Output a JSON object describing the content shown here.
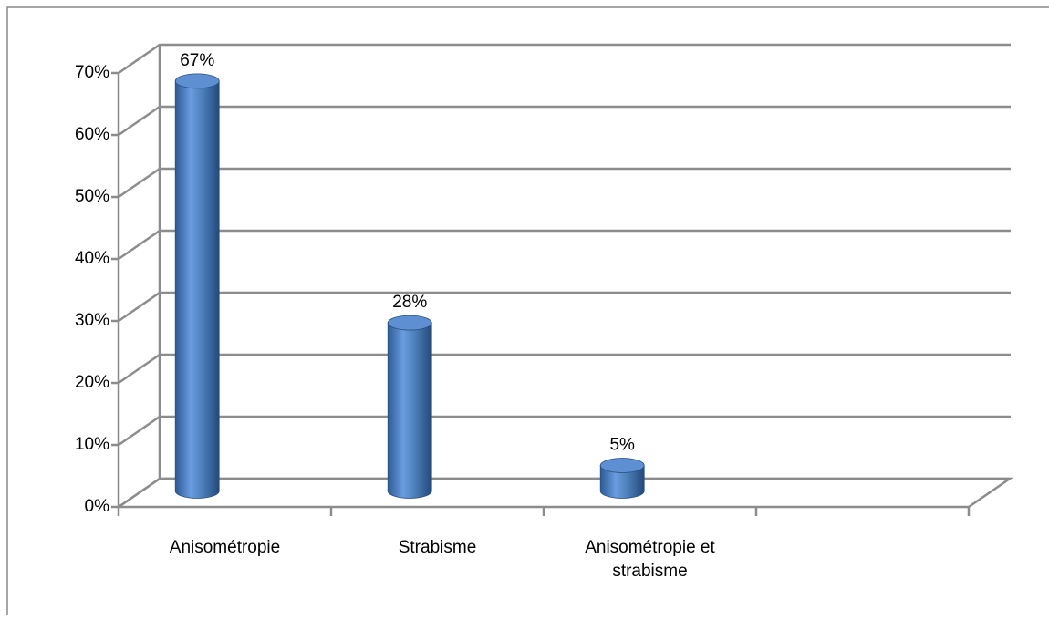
{
  "chart_data": {
    "type": "bar3d",
    "categories": [
      "Anisométropie",
      "Strabisme",
      "Anisométropie et strabisme",
      null
    ],
    "values": [
      67,
      28,
      5,
      null
    ],
    "value_labels": [
      "67%",
      "28%",
      "5%",
      null
    ],
    "color": "#4f81bd",
    "ylim": [
      0,
      70
    ],
    "yticks": [
      {
        "value": 0,
        "label": "0%"
      },
      {
        "value": 10,
        "label": "10%"
      },
      {
        "value": 20,
        "label": "20%"
      },
      {
        "value": 30,
        "label": "30%"
      },
      {
        "value": 40,
        "label": "40%"
      },
      {
        "value": 50,
        "label": "50%"
      },
      {
        "value": 60,
        "label": "60%"
      },
      {
        "value": 70,
        "label": "70%"
      }
    ],
    "grid": true
  }
}
